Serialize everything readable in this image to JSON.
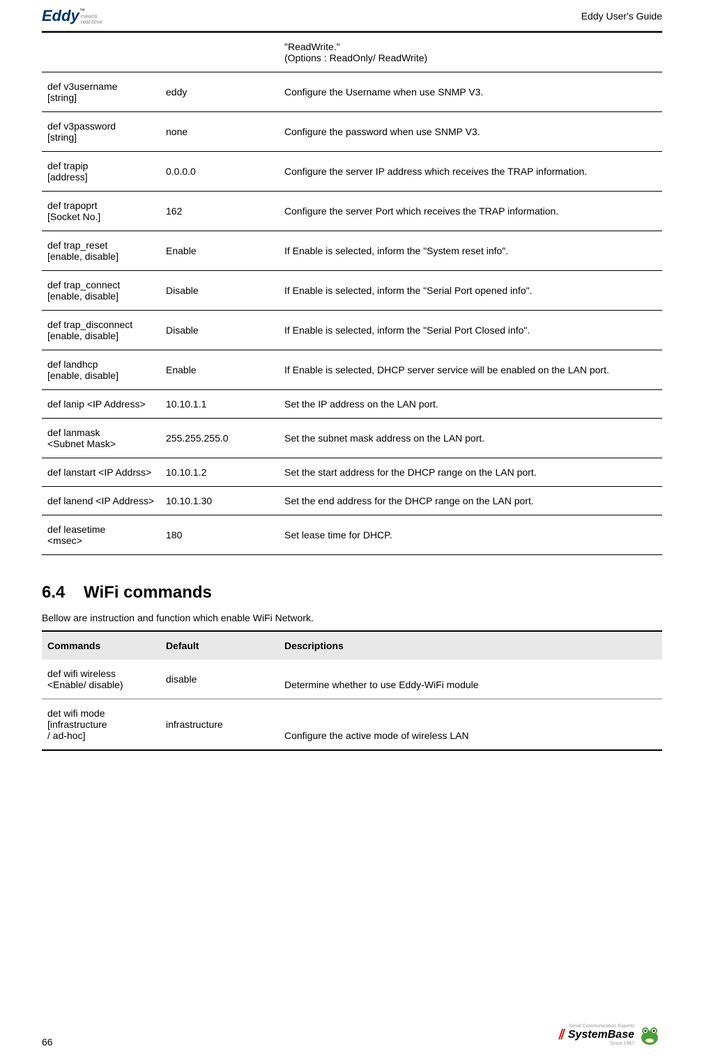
{
  "header": {
    "brand": "Eddy",
    "tm": "™",
    "tag1": "means",
    "tag2": "real-time",
    "guide": "Eddy User's Guide"
  },
  "table1": {
    "rows": [
      {
        "c0": "",
        "c1": "",
        "c2": "\"ReadWrite.\"\n(Options : ReadOnly/ ReadWrite)"
      },
      {
        "c0": "def v3username\n[string]",
        "c1": "eddy",
        "c2": "Configure the Username when use SNMP V3."
      },
      {
        "c0": "def v3password\n[string]",
        "c1": "none",
        "c2": "Configure the password when use SNMP V3."
      },
      {
        "c0": "def trapip\n[address]",
        "c1": "0.0.0.0",
        "c2": "Configure the server IP address which receives the TRAP information."
      },
      {
        "c0": "def trapoprt\n[Socket No.]",
        "c1": "162",
        "c2": "Configure the server Port which receives the TRAP information."
      },
      {
        "c0": "def trap_reset\n[enable, disable]",
        "c1": "Enable",
        "c2": "If Enable is selected, inform the \"System reset info\"."
      },
      {
        "c0": "def trap_connect\n[enable, disable]",
        "c1": "Disable",
        "c2": "If Enable is selected, inform the \"Serial Port opened info\"."
      },
      {
        "c0": "def trap_disconnect\n[enable, disable]",
        "c1": "Disable",
        "c2": "If Enable is selected, inform the \"Serial Port Closed info\"."
      },
      {
        "c0": "def landhcp\n[enable, disable]",
        "c1": "Enable",
        "c2": "If Enable is selected, DHCP server service will be enabled on the LAN port."
      },
      {
        "c0": "def lanip <IP Address>",
        "c1": "10.10.1.1",
        "c2": "Set the IP address on the LAN port."
      },
      {
        "c0": "def lanmask\n<Subnet Mask>",
        "c1": "255.255.255.0",
        "c2": "Set the subnet mask address on the LAN port."
      },
      {
        "c0": "def lanstart <IP Addrss>",
        "c1": "10.10.1.2",
        "c2": "Set the start address for the DHCP range on the LAN port."
      },
      {
        "c0": "def lanend <IP Address>",
        "c1": "10.10.1.30",
        "c2": "Set the end address for the DHCP range on the LAN port."
      },
      {
        "c0": "def leasetime\n<msec>",
        "c1": "180",
        "c2": "Set lease time for DHCP."
      }
    ]
  },
  "section": {
    "num": "6.4",
    "title": "WiFi commands",
    "desc": "Bellow are instruction and function which enable WiFi Network."
  },
  "table2": {
    "headers": [
      "Commands",
      "Default",
      "Descriptions"
    ],
    "rows": [
      {
        "c0": "def wifi wireless\n  <Enable/ disable)",
        "c1": "disable",
        "c2": "Determine whether to use Eddy-WiFi module"
      },
      {
        "c0": "det wifi mode\n[infrastructure\n/ ad-hoc]",
        "c1": "infrastructure",
        "c2": "Configure the active mode of wireless LAN"
      }
    ]
  },
  "footer": {
    "page": "66",
    "brand": "SystemBase",
    "sub": "Serial Communication Experts",
    "since": "Since 1987"
  }
}
